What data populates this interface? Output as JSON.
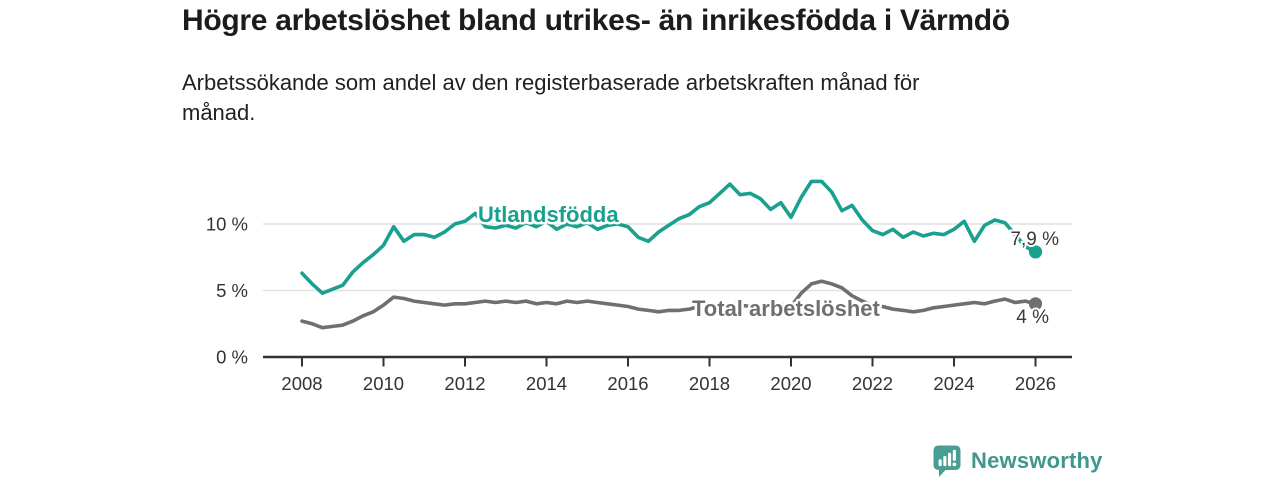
{
  "header": {
    "title": "Högre arbetslöshet bland utrikes- än inrikesfödda i Värmdö",
    "subtitle": "Arbetssökande som andel av den registerbaserade arbetskraften månad för månad."
  },
  "branding": {
    "logo_text": "Newsworthy",
    "logo_icon": "bar-chart-speech-bubble-icon",
    "brand_color": "#4a9d93"
  },
  "colors": {
    "accent_teal": "#1aa08f",
    "series_gray": "#6f6f6f",
    "gridline": "#e1e1e1",
    "axis": "#323232",
    "tick_text": "#333333",
    "end_label_text": "#3a3a3a",
    "background": "#ffffff"
  },
  "chart_data": {
    "type": "line",
    "title": "Högre arbetslöshet bland utrikes- än inrikesfödda i Värmdö",
    "subtitle": "Arbetssökande som andel av den registerbaserade arbetskraften månad för månad.",
    "x_unit": "year",
    "x_start": 2008,
    "x_step": 0.25,
    "xlim": [
      2007.05,
      2026.9
    ],
    "ylim": [
      0,
      15
    ],
    "grid": "horizontal",
    "legend_position": "inline-labels",
    "x_ticks": [
      2008,
      2010,
      2012,
      2014,
      2016,
      2018,
      2020,
      2022,
      2024,
      2026
    ],
    "y_ticks": [
      {
        "value": 0,
        "label": "0 %"
      },
      {
        "value": 5,
        "label": "5 %"
      },
      {
        "value": 10,
        "label": "10 %"
      }
    ],
    "series": [
      {
        "name": "Utlandsfödda",
        "color": "#1aa08f",
        "end_value": 7.9,
        "end_label": "7,9 %",
        "values": [
          6.3,
          5.5,
          4.8,
          5.1,
          5.4,
          6.4,
          7.1,
          7.7,
          8.4,
          9.8,
          8.7,
          9.2,
          9.2,
          9.0,
          9.4,
          10.0,
          10.2,
          10.8,
          9.8,
          9.7,
          9.9,
          9.7,
          10.1,
          9.8,
          10.2,
          9.6,
          10.0,
          9.8,
          10.1,
          9.6,
          9.9,
          10.0,
          9.8,
          9.0,
          8.7,
          9.4,
          9.9,
          10.4,
          10.7,
          11.3,
          11.6,
          12.3,
          13.0,
          12.2,
          12.3,
          11.9,
          11.1,
          11.6,
          10.5,
          12.0,
          13.2,
          13.2,
          12.4,
          11.0,
          11.4,
          10.3,
          9.5,
          9.2,
          9.6,
          9.0,
          9.4,
          9.1,
          9.3,
          9.2,
          9.6,
          10.2,
          8.7,
          9.9,
          10.3,
          10.1,
          9.2,
          8.3,
          7.9
        ]
      },
      {
        "name": "Total arbetslöshet",
        "color": "#6f6f6f",
        "end_value": 4.0,
        "end_label": "4 %",
        "values": [
          2.7,
          2.5,
          2.2,
          2.3,
          2.4,
          2.7,
          3.1,
          3.4,
          3.9,
          4.5,
          4.4,
          4.2,
          4.1,
          4.0,
          3.9,
          4.0,
          4.0,
          4.1,
          4.2,
          4.1,
          4.2,
          4.1,
          4.2,
          4.0,
          4.1,
          4.0,
          4.2,
          4.1,
          4.2,
          4.1,
          4.0,
          3.9,
          3.8,
          3.6,
          3.5,
          3.4,
          3.5,
          3.5,
          3.6,
          3.8,
          3.8,
          3.9,
          4.0,
          3.9,
          3.8,
          3.9,
          3.8,
          3.9,
          3.8,
          4.8,
          5.5,
          5.7,
          5.5,
          5.2,
          4.6,
          4.2,
          3.9,
          3.8,
          3.6,
          3.5,
          3.4,
          3.5,
          3.7,
          3.8,
          3.9,
          4.0,
          4.1,
          4.0,
          4.2,
          4.35,
          4.1,
          4.2,
          4.0
        ]
      }
    ]
  }
}
